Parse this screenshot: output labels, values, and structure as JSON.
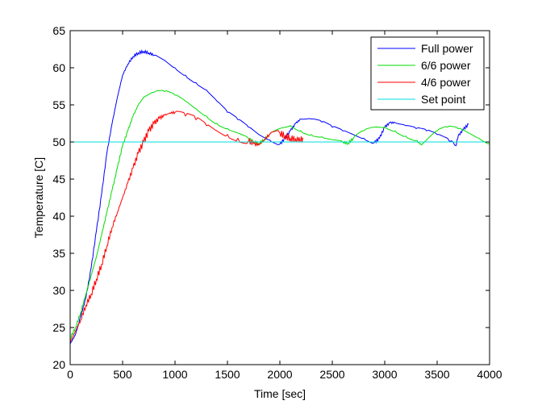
{
  "chart_data": {
    "type": "line",
    "title": "",
    "xlabel": "Time [sec]",
    "ylabel": "Temperature [C]",
    "xlim": [
      0,
      4000
    ],
    "ylim": [
      20,
      65
    ],
    "xticks": [
      0,
      500,
      1000,
      1500,
      2000,
      2500,
      3000,
      3500,
      4000
    ],
    "yticks": [
      20,
      25,
      30,
      35,
      40,
      45,
      50,
      55,
      60,
      65
    ],
    "grid": false,
    "legend_position": "top-right",
    "series": [
      {
        "name": "Full power",
        "color": "#0000ff",
        "x": [
          0,
          50,
          100,
          150,
          200,
          250,
          300,
          350,
          400,
          450,
          500,
          550,
          600,
          650,
          700,
          750,
          800,
          900,
          1000,
          1100,
          1200,
          1300,
          1400,
          1500,
          1600,
          1700,
          1800,
          1900,
          2000,
          2050,
          2100,
          2150,
          2200,
          2300,
          2400,
          2500,
          2600,
          2700,
          2800,
          2900,
          2950,
          3000,
          3050,
          3100,
          3200,
          3300,
          3400,
          3500,
          3600,
          3680,
          3700,
          3750,
          3800
        ],
        "y": [
          22.8,
          24,
          26.5,
          29,
          33,
          38,
          43,
          48.5,
          52.5,
          56,
          59,
          60.5,
          61.5,
          62,
          62.2,
          62,
          61.7,
          61,
          60,
          59,
          58,
          57,
          55.5,
          54,
          53,
          52,
          51,
          50.3,
          49.7,
          50.5,
          51.5,
          52.5,
          53.1,
          53.1,
          52.7,
          52,
          51.5,
          51,
          50.5,
          49.9,
          50.5,
          52,
          52.6,
          52.6,
          52.2,
          51.8,
          51.5,
          51,
          50.5,
          49.5,
          50.8,
          51.7,
          52.4
        ]
      },
      {
        "name": "6/6 power",
        "color": "#00dd00",
        "x": [
          0,
          50,
          100,
          150,
          200,
          250,
          300,
          350,
          400,
          450,
          500,
          550,
          600,
          650,
          700,
          800,
          900,
          1000,
          1100,
          1200,
          1300,
          1400,
          1500,
          1600,
          1700,
          1750,
          1800,
          1850,
          1900,
          2000,
          2100,
          2200,
          2300,
          2400,
          2500,
          2600,
          2650,
          2700,
          2800,
          2900,
          3000,
          3100,
          3200,
          3300,
          3350,
          3400,
          3500,
          3600,
          3700,
          3800,
          3900,
          4000
        ],
        "y": [
          23.5,
          25,
          27,
          29.5,
          32,
          34.5,
          37.5,
          40.5,
          43.5,
          46.5,
          49.5,
          51.5,
          53.5,
          55,
          56,
          56.7,
          56.8,
          56.3,
          55.5,
          54.5,
          53.5,
          52.5,
          51.8,
          51.2,
          50.5,
          50,
          49.8,
          50.3,
          51,
          51.8,
          52.2,
          51.5,
          51,
          50.7,
          50.3,
          50,
          49.8,
          50.5,
          51.5,
          52,
          52,
          51.5,
          50.8,
          50.2,
          49.6,
          50.3,
          51.5,
          52,
          51.8,
          51.2,
          50.5,
          49.8
        ]
      },
      {
        "name": "4/6 power",
        "color": "#ff0000",
        "x": [
          0,
          50,
          100,
          150,
          200,
          250,
          300,
          350,
          400,
          450,
          500,
          550,
          600,
          650,
          700,
          750,
          800,
          850,
          900,
          950,
          1000,
          1100,
          1200,
          1300,
          1400,
          1500,
          1600,
          1700,
          1750,
          1800,
          1850,
          1900,
          2000,
          2050,
          2100,
          2150,
          2200,
          2220
        ],
        "y": [
          23,
          24.5,
          26,
          28,
          29.5,
          31.5,
          33.5,
          36,
          38.5,
          40.5,
          42.5,
          44.5,
          46.5,
          48.5,
          50,
          51.5,
          52.5,
          53.2,
          53.6,
          53.9,
          54,
          53.5,
          53,
          52.2,
          51.5,
          51,
          50.5,
          50.1,
          49.8,
          49.6,
          50.3,
          51,
          51.2,
          50.8,
          50.5,
          50.4,
          50.3,
          50.4
        ]
      },
      {
        "name": "Set point",
        "color": "#00dddd",
        "x": [
          0,
          4000
        ],
        "y": [
          50,
          50
        ]
      }
    ]
  }
}
